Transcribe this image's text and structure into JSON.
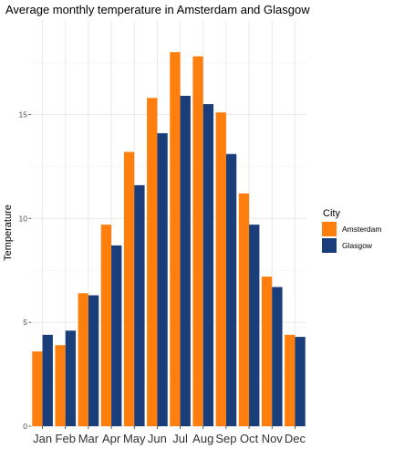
{
  "chart_data": {
    "type": "bar",
    "title": "Average monthly temperature in Amsterdam and Glasgow",
    "xlabel": "",
    "ylabel": "Temperature",
    "categories": [
      "Jan",
      "Feb",
      "Mar",
      "Apr",
      "May",
      "Jun",
      "Jul",
      "Aug",
      "Sep",
      "Oct",
      "Nov",
      "Dec"
    ],
    "series": [
      {
        "name": "Amsterdam",
        "color": "#ff7f0e",
        "values": [
          3.6,
          3.9,
          6.4,
          9.7,
          13.2,
          15.8,
          18.0,
          17.8,
          15.1,
          11.2,
          7.2,
          4.4
        ]
      },
      {
        "name": "Glasgow",
        "color": "#1a3e7a",
        "values": [
          4.4,
          4.6,
          6.3,
          8.7,
          11.6,
          14.1,
          15.9,
          15.5,
          13.1,
          9.7,
          6.7,
          4.3
        ]
      }
    ],
    "ylim": [
      0,
      19.5
    ],
    "yticks": [
      0,
      5,
      10,
      15
    ],
    "legend": {
      "title": "City",
      "placement": "right"
    },
    "grid": true,
    "background": "#ffffff",
    "gridline_color": "#ebebeb"
  }
}
